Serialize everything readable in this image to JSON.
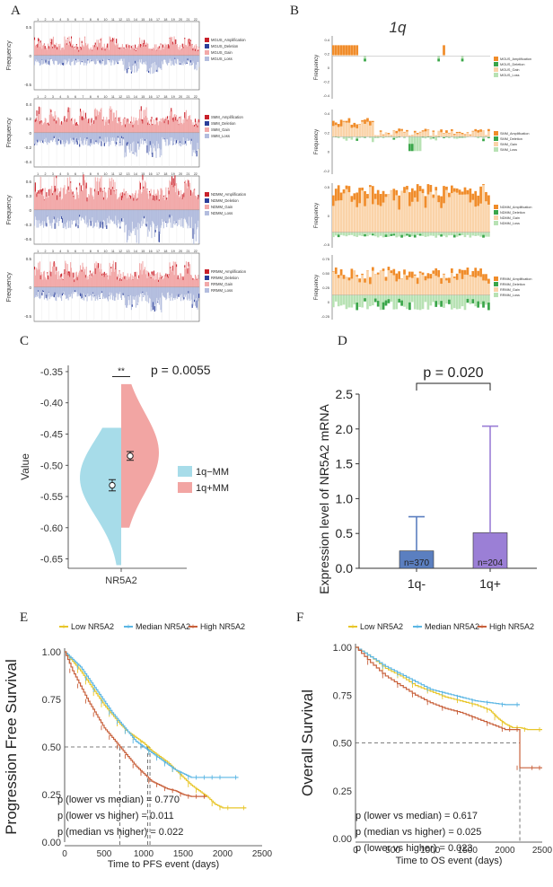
{
  "panels": {
    "a": "A",
    "b": "B",
    "c": "C",
    "d": "D",
    "e": "E",
    "f": "F"
  },
  "colors": {
    "red_amp": "#c8202a",
    "red_gain": "#f2a9a9",
    "blue_del": "#2b3f9a",
    "blue_loss": "#b3bdde",
    "orange_amp": "#f08c2a",
    "orange_gain": "#fad3a8",
    "green_del": "#3aa64a",
    "green_loss": "#b8e2b4",
    "violin_blue": "#a7dce9",
    "violin_red": "#f2a5a3",
    "bar_blue": "#5b7fc0",
    "bar_purple": "#9b7fd6",
    "km_low": "#e8c62a",
    "km_median": "#5bb6e4",
    "km_high": "#c8603b"
  },
  "chart_data": [
    {
      "type": "area",
      "panel": "A",
      "title": "",
      "chromosomes": [
        "1",
        "2",
        "3",
        "4",
        "5",
        "6",
        "7",
        "8",
        "9",
        "10",
        "11",
        "12",
        "13",
        "14",
        "15",
        "16",
        "17",
        "18",
        "19",
        "20",
        "21",
        "22"
      ],
      "subplots": [
        {
          "name": "MGUS",
          "ylabel": "Frequency",
          "yticks": [
            "0.5",
            "0",
            "-0.5"
          ],
          "ylim": [
            -0.7,
            0.7
          ],
          "legend": [
            "MGUS_Amplification",
            "MGUS_Deletion",
            "MGUS_Gain",
            "MGUS_Loss"
          ]
        },
        {
          "name": "SMM",
          "ylabel": "Frequency",
          "yticks": [
            "0.4",
            "0.2",
            "0",
            "-0.2",
            "-0.4"
          ],
          "ylim": [
            -0.5,
            0.5
          ],
          "legend": [
            "SMM_Amplification",
            "SMM_Deletion",
            "SMM_Gain",
            "SMM_Loss"
          ]
        },
        {
          "name": "NDMM",
          "ylabel": "Frequency",
          "yticks": [
            "0.6",
            "0.3",
            "0",
            "-0.3",
            "-0.6"
          ],
          "ylim": [
            -0.7,
            0.7
          ],
          "legend": [
            "NDMM_Amplification",
            "NDMM_Deletion",
            "NDMM_Gain",
            "NDMM_Loss"
          ]
        },
        {
          "name": "RRMM",
          "ylabel": "Frequency",
          "yticks": [
            "0.5",
            "0",
            "-0.5"
          ],
          "ylim": [
            -0.7,
            0.7
          ],
          "legend": [
            "RRMM_Amplification",
            "RRMM_Deletion",
            "RRMM_Gain",
            "RRMM_Loss"
          ]
        }
      ]
    },
    {
      "type": "bar",
      "panel": "B",
      "title": "1q",
      "subplots": [
        {
          "name": "MGUS",
          "ylabel": "Frequency",
          "yticks": [
            "0.4",
            "0.2",
            "0",
            "-0.2",
            "-0.4"
          ],
          "legend": [
            "MGUS_Amplification",
            "MGUS_Deletion",
            "MGUS_Gain",
            "MGUS_Loss"
          ]
        },
        {
          "name": "SMM",
          "ylabel": "Frequency",
          "yticks": [
            "0.4",
            "0.2",
            "0",
            "-0.2"
          ],
          "legend": [
            "SMM_Amplification",
            "SMM_Deletion",
            "SMM_Gain",
            "SMM_Loss"
          ]
        },
        {
          "name": "NDMM",
          "ylabel": "Frequency",
          "yticks": [
            "0.5",
            "0",
            "-0.5"
          ],
          "legend": [
            "NDMM_Amplification",
            "NDMM_Deletion",
            "NDMM_Gain",
            "NDMM_Loss"
          ]
        },
        {
          "name": "RRMM",
          "ylabel": "Frequency",
          "yticks": [
            "0.75",
            "0.50",
            "0.25",
            "0",
            "-0.25"
          ],
          "legend": [
            "RRMM_Amplification",
            "RRMM_Deletion",
            "RRMM_Gain",
            "RRMM_Loss"
          ]
        }
      ]
    },
    {
      "type": "violin",
      "panel": "C",
      "ylabel": "Value",
      "xlabel": "NR5A2",
      "yticks": [
        -0.35,
        -0.4,
        -0.45,
        -0.5,
        -0.55,
        -0.6,
        -0.65
      ],
      "ylim": [
        -0.665,
        -0.34
      ],
      "pvalue_label": "p = 0.0055",
      "significance": "**",
      "groups": [
        {
          "name": "1q−MM",
          "mean": -0.532,
          "err": 0.009,
          "min": -0.66,
          "max": -0.44
        },
        {
          "name": "1q+MM",
          "mean": -0.485,
          "err": 0.007,
          "min": -0.6,
          "max": -0.37
        }
      ]
    },
    {
      "type": "bar",
      "panel": "D",
      "ylabel": "Expression level of NR5A2 mRNA",
      "categories": [
        "1q-",
        "1q+"
      ],
      "values": [
        0.25,
        0.51
      ],
      "err_upper": [
        0.74,
        2.04
      ],
      "n_labels": [
        "n=370",
        "n=204"
      ],
      "yticks": [
        "0.0",
        "0.5",
        "1.0",
        "1.5",
        "2.0",
        "2.5"
      ],
      "ylim": [
        0,
        2.5
      ],
      "pvalue_label": "p = 0.020"
    },
    {
      "type": "line",
      "panel": "E",
      "ylabel": "Progression Free Survival",
      "xlabel": "Time to PFS event (days)",
      "xlim": [
        0,
        2500
      ],
      "ylim": [
        0,
        1
      ],
      "xticks": [
        "0",
        "500",
        "1000",
        "1500",
        "2000",
        "2500"
      ],
      "yticks": [
        "0.00",
        "0.25",
        "0.50",
        "0.75",
        "1.00"
      ],
      "legend": [
        "Low NR5A2",
        "Median NR5A2",
        "High NR5A2"
      ],
      "series": [
        {
          "name": "Low NR5A2",
          "x": [
            0,
            100,
            200,
            300,
            400,
            500,
            600,
            700,
            800,
            900,
            1000,
            1100,
            1200,
            1300,
            1400,
            1500,
            1600,
            1700,
            1800,
            1900,
            2000,
            2100,
            2300
          ],
          "y": [
            1.0,
            0.95,
            0.9,
            0.84,
            0.78,
            0.72,
            0.67,
            0.62,
            0.58,
            0.55,
            0.52,
            0.48,
            0.45,
            0.42,
            0.38,
            0.34,
            0.3,
            0.27,
            0.24,
            0.2,
            0.18,
            0.18,
            0.18
          ]
        },
        {
          "name": "Median NR5A2",
          "x": [
            0,
            100,
            200,
            300,
            400,
            500,
            600,
            700,
            800,
            900,
            1000,
            1100,
            1200,
            1300,
            1400,
            1500,
            1600,
            1700,
            1800,
            1900,
            2000,
            2200
          ],
          "y": [
            1.0,
            0.96,
            0.92,
            0.86,
            0.8,
            0.74,
            0.68,
            0.63,
            0.58,
            0.53,
            0.5,
            0.47,
            0.44,
            0.41,
            0.38,
            0.36,
            0.34,
            0.34,
            0.34,
            0.34,
            0.34,
            0.34
          ]
        },
        {
          "name": "High NR5A2",
          "x": [
            0,
            100,
            200,
            300,
            400,
            500,
            600,
            700,
            800,
            900,
            1000,
            1100,
            1200,
            1300,
            1400,
            1500,
            1600,
            1700,
            1800
          ],
          "y": [
            1.0,
            0.9,
            0.82,
            0.74,
            0.67,
            0.6,
            0.55,
            0.5,
            0.45,
            0.4,
            0.36,
            0.32,
            0.3,
            0.28,
            0.27,
            0.25,
            0.24,
            0.24,
            0.24
          ]
        }
      ],
      "median_lines_x": [
        700,
        1050,
        1080
      ],
      "pvalues": [
        "p (lower vs median) = 0.770",
        "p (lower vs higher) = 0.011",
        "p (median vs higher) = 0.022"
      ]
    },
    {
      "type": "line",
      "panel": "F",
      "ylabel": "Overall Survival",
      "xlabel": "Time to OS event (days)",
      "xlim": [
        0,
        2500
      ],
      "ylim": [
        0,
        1
      ],
      "xticks": [
        "0",
        "500",
        "1000",
        "1500",
        "2000",
        "2500"
      ],
      "yticks": [
        "0.00",
        "0.25",
        "0.50",
        "0.75",
        "1.00"
      ],
      "legend": [
        "Low NR5A2",
        "Median NR5A2",
        "High NR5A2"
      ],
      "series": [
        {
          "name": "Low NR5A2",
          "x": [
            0,
            200,
            400,
            600,
            800,
            1000,
            1200,
            1400,
            1600,
            1800,
            1900,
            2000,
            2100,
            2200,
            2300,
            2500
          ],
          "y": [
            1.0,
            0.95,
            0.89,
            0.85,
            0.8,
            0.77,
            0.74,
            0.72,
            0.7,
            0.67,
            0.63,
            0.6,
            0.58,
            0.58,
            0.57,
            0.57
          ]
        },
        {
          "name": "Median NR5A2",
          "x": [
            0,
            200,
            400,
            600,
            800,
            1000,
            1200,
            1400,
            1600,
            1800,
            2000,
            2200
          ],
          "y": [
            1.0,
            0.95,
            0.9,
            0.86,
            0.82,
            0.78,
            0.76,
            0.74,
            0.72,
            0.71,
            0.7,
            0.7
          ]
        },
        {
          "name": "High NR5A2",
          "x": [
            0,
            200,
            400,
            600,
            800,
            1000,
            1200,
            1400,
            1600,
            1800,
            2000,
            2100,
            2200,
            2200,
            2400,
            2500
          ],
          "y": [
            1.0,
            0.92,
            0.85,
            0.8,
            0.75,
            0.71,
            0.68,
            0.66,
            0.63,
            0.6,
            0.57,
            0.57,
            0.57,
            0.37,
            0.37,
            0.37
          ]
        }
      ],
      "median_lines_x": [
        2200
      ],
      "pvalues": [
        "p (lower vs median) = 0.617",
        "p (median vs higher) = 0.025",
        "p (lower vs higher) = 0.023"
      ]
    }
  ]
}
